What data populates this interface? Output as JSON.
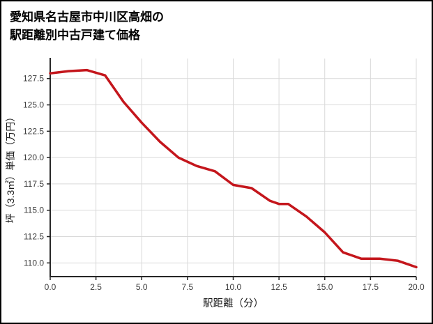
{
  "title": {
    "line1": "愛知県名古屋市中川区高畑の",
    "line2": "駅距離別中古戸建て価格"
  },
  "chart_data": {
    "type": "line",
    "title": "愛知県名古屋市中川区高畑の駅距離別中古戸建て価格",
    "xlabel": "駅距離（分）",
    "ylabel": "坪（3.3㎡）単価（万円）",
    "x": [
      0,
      1,
      2,
      3,
      4,
      5,
      6,
      7,
      8,
      9,
      10,
      11,
      12,
      12.5,
      13,
      14,
      15,
      16,
      17,
      18,
      19,
      20
    ],
    "y": [
      128.0,
      128.2,
      128.3,
      127.8,
      125.3,
      123.3,
      121.5,
      120.0,
      119.2,
      118.7,
      117.4,
      117.1,
      115.9,
      115.6,
      115.6,
      114.4,
      112.9,
      111.0,
      110.4,
      110.4,
      110.2,
      109.6
    ],
    "xticks": [
      0.0,
      2.5,
      5.0,
      7.5,
      10.0,
      12.5,
      15.0,
      17.5,
      20.0
    ],
    "yticks": [
      110.0,
      112.5,
      115.0,
      117.5,
      120.0,
      122.5,
      125.0,
      127.5
    ],
    "xlim": [
      0,
      20
    ],
    "ylim": [
      108.7,
      129.4
    ],
    "grid": true,
    "legend": "none",
    "line_color": "#c4161c",
    "grid_color": "#d9d9d9",
    "axis_color": "#262626",
    "tick_label_color": "#3d3d3d",
    "axis_label_color": "#1a1a1a"
  }
}
